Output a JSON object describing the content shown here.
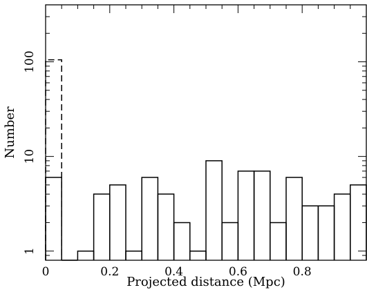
{
  "chart_data": {
    "type": "histogram",
    "xlabel": "Projected distance (Mpc)",
    "ylabel": "Number",
    "xlim": [
      0,
      1.0
    ],
    "ylim": [
      0.8,
      400
    ],
    "yscale": "log",
    "grid": false,
    "x_ticks": [
      0,
      0.2,
      0.4,
      0.6,
      0.8
    ],
    "x_tick_labels": [
      "0",
      "0.2",
      "0.4",
      "0.6",
      "0.8"
    ],
    "y_ticks": [
      1,
      10,
      100
    ],
    "y_tick_labels": [
      "1",
      "10",
      "100"
    ],
    "bin_width": 0.05,
    "series": [
      {
        "style": "solid",
        "bins": [
          {
            "x0": 0.0,
            "x1": 0.05,
            "value": 6
          },
          {
            "x0": 0.05,
            "x1": 0.1,
            "value": 0
          },
          {
            "x0": 0.1,
            "x1": 0.15,
            "value": 1
          },
          {
            "x0": 0.15,
            "x1": 0.2,
            "value": 4
          },
          {
            "x0": 0.2,
            "x1": 0.25,
            "value": 5
          },
          {
            "x0": 0.25,
            "x1": 0.3,
            "value": 1
          },
          {
            "x0": 0.3,
            "x1": 0.35,
            "value": 6
          },
          {
            "x0": 0.35,
            "x1": 0.4,
            "value": 4
          },
          {
            "x0": 0.4,
            "x1": 0.45,
            "value": 2
          },
          {
            "x0": 0.45,
            "x1": 0.5,
            "value": 1
          },
          {
            "x0": 0.5,
            "x1": 0.55,
            "value": 9
          },
          {
            "x0": 0.55,
            "x1": 0.6,
            "value": 2
          },
          {
            "x0": 0.6,
            "x1": 0.65,
            "value": 7
          },
          {
            "x0": 0.65,
            "x1": 0.7,
            "value": 7
          },
          {
            "x0": 0.7,
            "x1": 0.75,
            "value": 2
          },
          {
            "x0": 0.75,
            "x1": 0.8,
            "value": 6
          },
          {
            "x0": 0.8,
            "x1": 0.85,
            "value": 3
          },
          {
            "x0": 0.85,
            "x1": 0.9,
            "value": 3
          },
          {
            "x0": 0.9,
            "x1": 0.95,
            "value": 4
          },
          {
            "x0": 0.95,
            "x1": 1.0,
            "value": 5
          }
        ]
      },
      {
        "style": "dashed",
        "bins": [
          {
            "x0": 0.0,
            "x1": 0.05,
            "value": 105
          }
        ]
      }
    ]
  }
}
